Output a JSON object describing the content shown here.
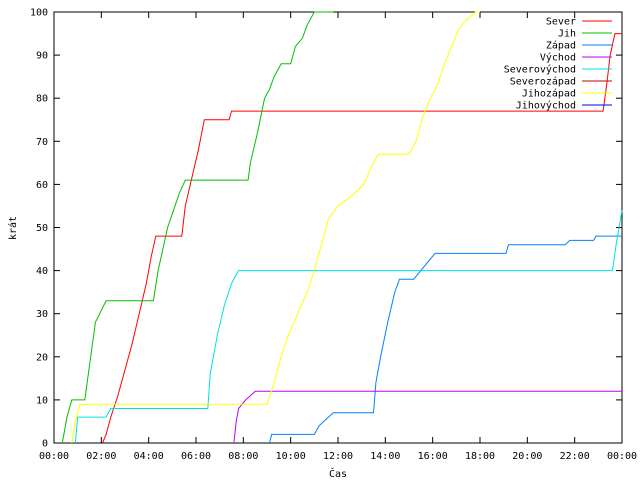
{
  "chart_data": {
    "type": "line",
    "title": "",
    "xlabel": "Čas",
    "ylabel": "krát",
    "xlim": [
      0,
      24
    ],
    "ylim": [
      0,
      100
    ],
    "x_ticks": [
      {
        "v": 0,
        "label": "00:00"
      },
      {
        "v": 2,
        "label": "02:00"
      },
      {
        "v": 4,
        "label": "04:00"
      },
      {
        "v": 6,
        "label": "06:00"
      },
      {
        "v": 8,
        "label": "08:00"
      },
      {
        "v": 10,
        "label": "10:00"
      },
      {
        "v": 12,
        "label": "12:00"
      },
      {
        "v": 14,
        "label": "14:00"
      },
      {
        "v": 16,
        "label": "16:00"
      },
      {
        "v": 18,
        "label": "18:00"
      },
      {
        "v": 20,
        "label": "20:00"
      },
      {
        "v": 22,
        "label": "22:00"
      },
      {
        "v": 24,
        "label": "00:00"
      }
    ],
    "y_ticks": [
      0,
      10,
      20,
      30,
      40,
      50,
      60,
      70,
      80,
      90,
      100
    ],
    "grid": false,
    "legend_position": "top-right",
    "series": [
      {
        "name": "Sever",
        "color": "#ff0000",
        "points": [
          [
            2.05,
            0
          ],
          [
            2.2,
            2
          ],
          [
            2.4,
            6
          ],
          [
            2.7,
            11
          ],
          [
            3.0,
            17
          ],
          [
            3.3,
            23
          ],
          [
            3.6,
            30
          ],
          [
            3.9,
            37
          ],
          [
            4.1,
            43
          ],
          [
            4.3,
            48
          ],
          [
            5.4,
            48
          ],
          [
            5.55,
            55
          ],
          [
            5.8,
            61
          ],
          [
            6.1,
            68
          ],
          [
            6.35,
            75
          ],
          [
            7.4,
            75
          ],
          [
            7.5,
            77
          ],
          [
            23.2,
            77
          ],
          [
            23.35,
            83
          ],
          [
            23.5,
            90
          ],
          [
            23.7,
            95
          ],
          [
            24,
            95
          ]
        ]
      },
      {
        "name": "Jih",
        "color": "#00c000",
        "points": [
          [
            0.35,
            0
          ],
          [
            0.55,
            6
          ],
          [
            0.75,
            10
          ],
          [
            1.3,
            10
          ],
          [
            1.55,
            20
          ],
          [
            1.75,
            28
          ],
          [
            2.2,
            33
          ],
          [
            4.2,
            33
          ],
          [
            4.4,
            40
          ],
          [
            4.6,
            45
          ],
          [
            4.8,
            50
          ],
          [
            5.05,
            54
          ],
          [
            5.3,
            58
          ],
          [
            5.55,
            61
          ],
          [
            8.2,
            61
          ],
          [
            8.3,
            65
          ],
          [
            8.6,
            72
          ],
          [
            8.9,
            80
          ],
          [
            9.1,
            82
          ],
          [
            9.3,
            85
          ],
          [
            9.6,
            88
          ],
          [
            10.0,
            88
          ],
          [
            10.2,
            92
          ],
          [
            10.5,
            94
          ],
          [
            10.7,
            97
          ],
          [
            11.0,
            100
          ],
          [
            11.8,
            100
          ]
        ]
      },
      {
        "name": "Západ",
        "color": "#0080ff",
        "points": [
          [
            9.1,
            0
          ],
          [
            9.2,
            2
          ],
          [
            11.0,
            2
          ],
          [
            11.2,
            4
          ],
          [
            11.6,
            6
          ],
          [
            11.8,
            7
          ],
          [
            13.5,
            7
          ],
          [
            13.6,
            14
          ],
          [
            13.8,
            20
          ],
          [
            14.1,
            28
          ],
          [
            14.4,
            35
          ],
          [
            14.6,
            38
          ],
          [
            15.2,
            38
          ],
          [
            15.5,
            40
          ],
          [
            15.8,
            42
          ],
          [
            16.1,
            44
          ],
          [
            19.1,
            44
          ],
          [
            19.2,
            46
          ],
          [
            21.6,
            46
          ],
          [
            21.8,
            47
          ],
          [
            22.8,
            47
          ],
          [
            22.9,
            48
          ],
          [
            24,
            48
          ]
        ]
      },
      {
        "name": "Východ",
        "color": "#c000ff",
        "points": [
          [
            7.6,
            0
          ],
          [
            7.7,
            5
          ],
          [
            7.8,
            8
          ],
          [
            8.1,
            10
          ],
          [
            8.3,
            11
          ],
          [
            8.5,
            12
          ],
          [
            24,
            12
          ]
        ]
      },
      {
        "name": "Severovýchod",
        "color": "#00e0e0",
        "points": [
          [
            0.9,
            0
          ],
          [
            1.0,
            6
          ],
          [
            2.2,
            6
          ],
          [
            2.4,
            8
          ],
          [
            6.5,
            8
          ],
          [
            6.6,
            16
          ],
          [
            6.9,
            25
          ],
          [
            7.2,
            32
          ],
          [
            7.5,
            37
          ],
          [
            7.8,
            40
          ],
          [
            23.6,
            40
          ],
          [
            23.75,
            46
          ],
          [
            24,
            54
          ]
        ]
      },
      {
        "name": "Severozápad",
        "color": "#c00000",
        "points": []
      },
      {
        "name": "Jihozápad",
        "color": "#ffff00",
        "points": [
          [
            0.75,
            0
          ],
          [
            0.9,
            5
          ],
          [
            1.1,
            9
          ],
          [
            9.0,
            9
          ],
          [
            9.3,
            14
          ],
          [
            9.6,
            20
          ],
          [
            9.9,
            25
          ],
          [
            10.3,
            30
          ],
          [
            10.7,
            35
          ],
          [
            11.0,
            40
          ],
          [
            11.3,
            46
          ],
          [
            11.6,
            52
          ],
          [
            12.0,
            55
          ],
          [
            12.5,
            57
          ],
          [
            13.1,
            60
          ],
          [
            13.4,
            64
          ],
          [
            13.7,
            67
          ],
          [
            15.0,
            67
          ],
          [
            15.3,
            70
          ],
          [
            15.6,
            76
          ],
          [
            15.9,
            80
          ],
          [
            16.2,
            83
          ],
          [
            16.5,
            88
          ],
          [
            16.8,
            92
          ],
          [
            17.1,
            96
          ],
          [
            17.4,
            98
          ],
          [
            17.8,
            100
          ],
          [
            18.0,
            100
          ]
        ]
      },
      {
        "name": "Jihovýchod",
        "color": "#0000ff",
        "points": []
      }
    ]
  }
}
